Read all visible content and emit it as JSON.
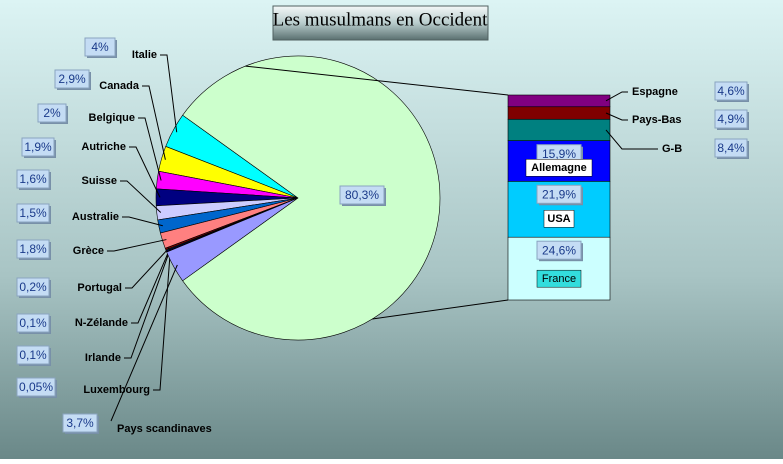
{
  "chart_data": {
    "type": "pie",
    "title": "Les musulmans en Occident",
    "categories": [
      "Italie",
      "Canada",
      "Belgique",
      "Autriche",
      "Suisse",
      "Australie",
      "Grèce",
      "Portugal",
      "N-Zélande",
      "Irlande",
      "Luxembourg",
      "Pays scandinaves",
      null
    ],
    "values": [
      4,
      2.9,
      2,
      1.9,
      1.6,
      1.5,
      1.8,
      0.2,
      0.1,
      0.1,
      0.05,
      3.7,
      80.3
    ],
    "value_labels": [
      "4%",
      "2,9%",
      "2%",
      "1,9%",
      "1,6%",
      "1,5%",
      "1,8%",
      "0,2%",
      "0,1%",
      "0,1%",
      "0,05%",
      "3,7%",
      "80,3%"
    ],
    "colors": [
      "#00ffff",
      "#ffff00",
      "#ff00ff",
      "#000080",
      "#ccccff",
      "#0066cc",
      "#ff8080",
      "#800000",
      "#008080",
      "#0000ff",
      "#800080",
      "#9999ff",
      "#ccffcc"
    ],
    "breakdown": {
      "categories": [
        "France",
        "USA",
        "Allemagne",
        "G-B",
        "Pays-Bas",
        "Espagne"
      ],
      "values": [
        24.6,
        21.9,
        15.9,
        8.4,
        4.9,
        4.6
      ],
      "value_labels": [
        "24,6%",
        "21,9%",
        "15,9%",
        "8,4%",
        "4,9%",
        "4,6%"
      ],
      "colors": [
        "#ccffff",
        "#00ccff",
        "#0000ff",
        "#008080",
        "#800000",
        "#800080"
      ]
    }
  }
}
